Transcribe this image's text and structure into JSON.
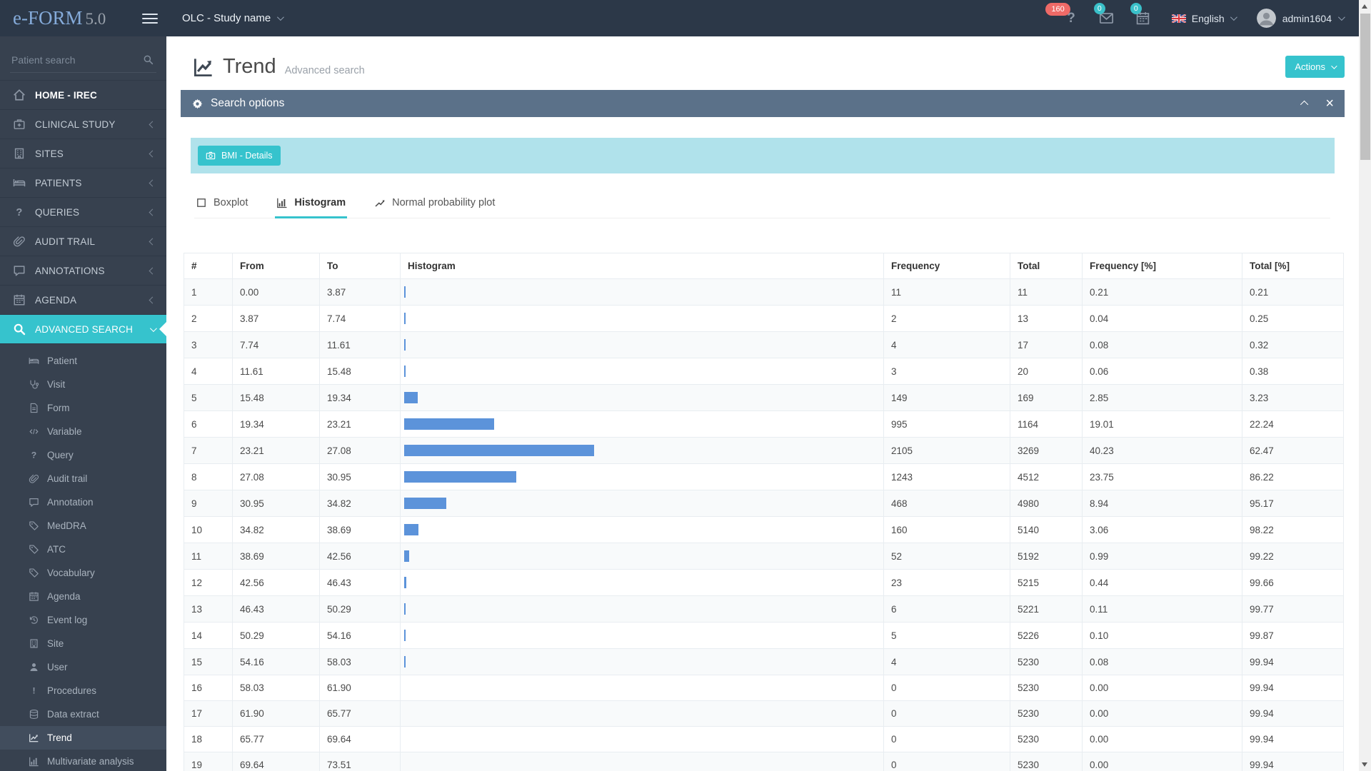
{
  "navbar": {
    "brand": "e-FORM",
    "brand_version": "5.0",
    "study_selector": "OLC - Study name",
    "help_badge": "160",
    "messages_badge": "0",
    "agenda_badge": "0",
    "language": "English",
    "username": "admin1604"
  },
  "sidebar": {
    "search_placeholder": "Patient search",
    "items": [
      {
        "label": "HOME - IREC",
        "icon": "home-icon",
        "emphasized": true
      },
      {
        "label": "CLINICAL STUDY",
        "icon": "clinical-study-icon",
        "expandable": true
      },
      {
        "label": "SITES",
        "icon": "sites-icon",
        "expandable": true
      },
      {
        "label": "PATIENTS",
        "icon": "patients-icon",
        "expandable": true
      },
      {
        "label": "QUERIES",
        "icon": "question-icon",
        "expandable": true
      },
      {
        "label": "AUDIT TRAIL",
        "icon": "paperclip-icon",
        "expandable": true
      },
      {
        "label": "ANNOTATIONS",
        "icon": "comment-icon",
        "expandable": true
      },
      {
        "label": "AGENDA",
        "icon": "calendar-icon",
        "expandable": true
      },
      {
        "label": "ADVANCED SEARCH",
        "icon": "search-icon",
        "expandable": true,
        "expanded": true,
        "active": true
      }
    ],
    "advanced_search_items": [
      {
        "label": "Patient",
        "icon": "patients-icon"
      },
      {
        "label": "Visit",
        "icon": "stethoscope-icon"
      },
      {
        "label": "Form",
        "icon": "file-icon"
      },
      {
        "label": "Variable",
        "icon": "code-icon"
      },
      {
        "label": "Query",
        "icon": "question-icon"
      },
      {
        "label": "Audit trail",
        "icon": "paperclip-icon"
      },
      {
        "label": "Annotation",
        "icon": "comment-icon"
      },
      {
        "label": "MedDRA",
        "icon": "tag-icon"
      },
      {
        "label": "ATC",
        "icon": "tag-icon"
      },
      {
        "label": "Vocabulary",
        "icon": "tag-icon"
      },
      {
        "label": "Agenda",
        "icon": "calendar-icon"
      },
      {
        "label": "Event log",
        "icon": "history-icon"
      },
      {
        "label": "Site",
        "icon": "sites-icon"
      },
      {
        "label": "User",
        "icon": "user-icon"
      },
      {
        "label": "Procedures",
        "icon": "exclamation-icon"
      },
      {
        "label": "Data extract",
        "icon": "database-icon"
      },
      {
        "label": "Trend",
        "icon": "trend-icon",
        "active": true
      },
      {
        "label": "Multivariate analysis",
        "icon": "bar-chart-icon"
      }
    ]
  },
  "main": {
    "title": "Trend",
    "subtitle": "Advanced search",
    "actions_label": "Actions",
    "panel_title": "Search options",
    "bmi_button_label": "BMI - Details",
    "tabs": [
      {
        "label": "Boxplot",
        "icon": "boxplot-icon"
      },
      {
        "label": "Histogram",
        "icon": "bar-chart-icon",
        "active": true
      },
      {
        "label": "Normal probability plot",
        "icon": "line-plot-icon"
      }
    ],
    "table": {
      "columns": [
        "#",
        "From",
        "To",
        "Histogram",
        "Frequency",
        "Total",
        "Frequency [%]",
        "Total [%]"
      ],
      "max_frequency": 2105,
      "rows": [
        {
          "n": "1",
          "from": "0.00",
          "to": "3.87",
          "frequency": 11,
          "total": 11,
          "frequency_pct": "0.21",
          "total_pct": "0.21"
        },
        {
          "n": "2",
          "from": "3.87",
          "to": "7.74",
          "frequency": 2,
          "total": 13,
          "frequency_pct": "0.04",
          "total_pct": "0.25"
        },
        {
          "n": "3",
          "from": "7.74",
          "to": "11.61",
          "frequency": 4,
          "total": 17,
          "frequency_pct": "0.08",
          "total_pct": "0.32"
        },
        {
          "n": "4",
          "from": "11.61",
          "to": "15.48",
          "frequency": 3,
          "total": 20,
          "frequency_pct": "0.06",
          "total_pct": "0.38"
        },
        {
          "n": "5",
          "from": "15.48",
          "to": "19.34",
          "frequency": 149,
          "total": 169,
          "frequency_pct": "2.85",
          "total_pct": "3.23"
        },
        {
          "n": "6",
          "from": "19.34",
          "to": "23.21",
          "frequency": 995,
          "total": 1164,
          "frequency_pct": "19.01",
          "total_pct": "22.24"
        },
        {
          "n": "7",
          "from": "23.21",
          "to": "27.08",
          "frequency": 2105,
          "total": 3269,
          "frequency_pct": "40.23",
          "total_pct": "62.47"
        },
        {
          "n": "8",
          "from": "27.08",
          "to": "30.95",
          "frequency": 1243,
          "total": 4512,
          "frequency_pct": "23.75",
          "total_pct": "86.22"
        },
        {
          "n": "9",
          "from": "30.95",
          "to": "34.82",
          "frequency": 468,
          "total": 4980,
          "frequency_pct": "8.94",
          "total_pct": "95.17"
        },
        {
          "n": "10",
          "from": "34.82",
          "to": "38.69",
          "frequency": 160,
          "total": 5140,
          "frequency_pct": "3.06",
          "total_pct": "98.22"
        },
        {
          "n": "11",
          "from": "38.69",
          "to": "42.56",
          "frequency": 52,
          "total": 5192,
          "frequency_pct": "0.99",
          "total_pct": "99.22"
        },
        {
          "n": "12",
          "from": "42.56",
          "to": "46.43",
          "frequency": 23,
          "total": 5215,
          "frequency_pct": "0.44",
          "total_pct": "99.66"
        },
        {
          "n": "13",
          "from": "46.43",
          "to": "50.29",
          "frequency": 6,
          "total": 5221,
          "frequency_pct": "0.11",
          "total_pct": "99.77"
        },
        {
          "n": "14",
          "from": "50.29",
          "to": "54.16",
          "frequency": 5,
          "total": 5226,
          "frequency_pct": "0.10",
          "total_pct": "99.87"
        },
        {
          "n": "15",
          "from": "54.16",
          "to": "58.03",
          "frequency": 4,
          "total": 5230,
          "frequency_pct": "0.08",
          "total_pct": "99.94"
        },
        {
          "n": "16",
          "from": "58.03",
          "to": "61.90",
          "frequency": 0,
          "total": 5230,
          "frequency_pct": "0.00",
          "total_pct": "99.94"
        },
        {
          "n": "17",
          "from": "61.90",
          "to": "65.77",
          "frequency": 0,
          "total": 5230,
          "frequency_pct": "0.00",
          "total_pct": "99.94"
        },
        {
          "n": "18",
          "from": "65.77",
          "to": "69.64",
          "frequency": 0,
          "total": 5230,
          "frequency_pct": "0.00",
          "total_pct": "99.94"
        },
        {
          "n": "19",
          "from": "69.64",
          "to": "73.51",
          "frequency": 0,
          "total": 5230,
          "frequency_pct": "0.00",
          "total_pct": "99.94"
        }
      ]
    }
  },
  "colors": {
    "accent_teal": "#36c3cd",
    "panel_header": "#5b7189",
    "info_strip": "#b0e2eb",
    "histogram_bar": "#5c93da",
    "badge_red": "#ee6a67",
    "badge_cyan": "#3ac0c9",
    "navbar_bg": "#2c3848",
    "sidebar_bg": "#37414f"
  }
}
